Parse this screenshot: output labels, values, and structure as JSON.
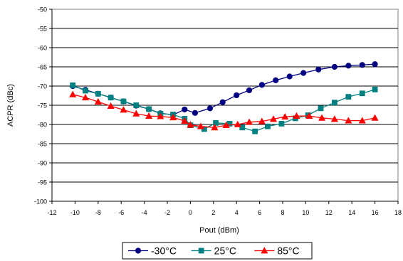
{
  "chart_data": {
    "type": "line",
    "xlabel": "Pout (dBm)",
    "ylabel": "ACPR (dBc)",
    "xlim": [
      -12,
      18
    ],
    "ylim": [
      -100,
      -50
    ],
    "xticks": [
      -12,
      -10,
      -8,
      -6,
      -4,
      -2,
      0,
      2,
      4,
      6,
      8,
      10,
      12,
      14,
      16,
      18
    ],
    "yticks": [
      -100,
      -95,
      -90,
      -85,
      -80,
      -75,
      -70,
      -65,
      -60,
      -55,
      -50
    ],
    "grid": "horizontal",
    "legend_position": "bottom",
    "series": [
      {
        "name": "-30°C",
        "color": "#000080",
        "marker": "circle",
        "x": [
          -10.2,
          -9.1,
          -8,
          -6.9,
          -5.8,
          -4.7,
          -3.6,
          -2.6,
          -1.5,
          -0.5,
          0.4,
          1.7,
          2.8,
          4,
          5.1,
          6.2,
          7.4,
          8.6,
          9.8,
          11.1,
          12.5,
          13.7,
          14.9,
          16
        ],
        "values": [
          -70,
          -71,
          -72,
          -73,
          -74,
          -75.1,
          -76,
          -77.1,
          -77.5,
          -76.1,
          -77,
          -75.8,
          -74.2,
          -72.4,
          -71.1,
          -69.7,
          -68.5,
          -67.5,
          -66.6,
          -65.7,
          -65,
          -64.7,
          -64.5,
          -64.3
        ]
      },
      {
        "name": "25°C",
        "color": "#008080",
        "marker": "square",
        "x": [
          -10.2,
          -9.1,
          -8,
          -6.9,
          -5.8,
          -4.7,
          -3.6,
          -2.6,
          -1.5,
          -0.5,
          0,
          1.2,
          2.2,
          3.4,
          4.5,
          5.6,
          6.7,
          7.9,
          9.1,
          10.2,
          11.3,
          12.5,
          13.7,
          14.9,
          16
        ],
        "values": [
          -69.8,
          -71.2,
          -72,
          -73,
          -74,
          -75,
          -76,
          -77.2,
          -77.4,
          -78.5,
          -80.2,
          -81.2,
          -79.6,
          -79.8,
          -80.8,
          -81.8,
          -80.5,
          -79.8,
          -78.4,
          -77.6,
          -75.8,
          -74.3,
          -72.8,
          -71.9,
          -70.9
        ]
      },
      {
        "name": "85°C",
        "color": "#ff0000",
        "marker": "triangle",
        "x": [
          -10.2,
          -9.1,
          -8,
          -6.9,
          -5.8,
          -4.7,
          -3.6,
          -2.6,
          -1.5,
          -0.5,
          0,
          0.9,
          2.1,
          3.1,
          4.1,
          5.1,
          6.2,
          7.2,
          8.2,
          9.2,
          10.3,
          11.4,
          12.5,
          13.7,
          14.9,
          16
        ],
        "values": [
          -72.2,
          -73,
          -74.1,
          -75.2,
          -76.2,
          -77.2,
          -77.8,
          -77.9,
          -78.2,
          -79.1,
          -80.1,
          -80.5,
          -80.8,
          -80.2,
          -80,
          -79.4,
          -79.2,
          -78.6,
          -78,
          -77.8,
          -77.8,
          -78.3,
          -78.6,
          -79,
          -79,
          -78.3
        ]
      }
    ]
  }
}
